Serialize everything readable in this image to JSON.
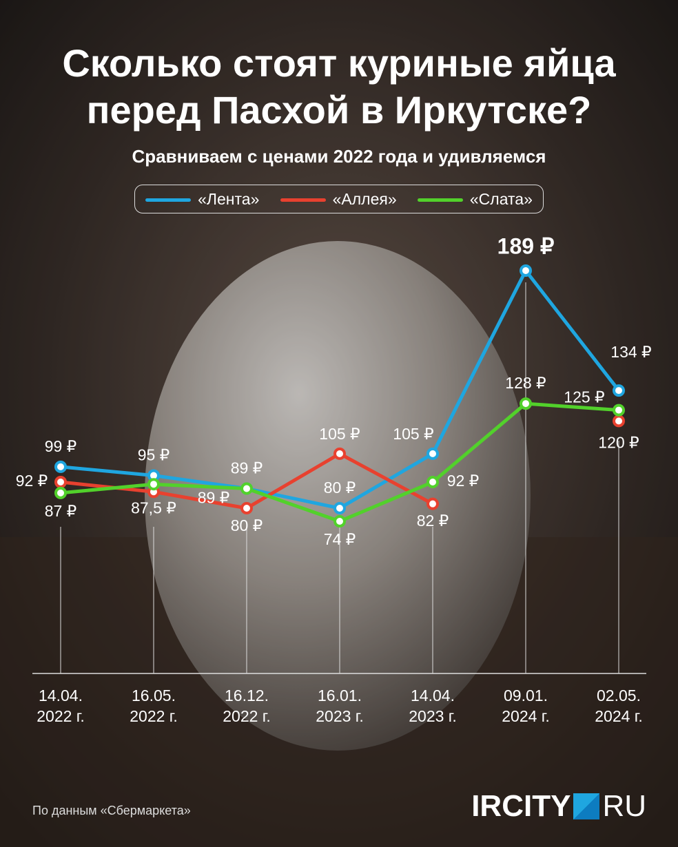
{
  "chart_data": {
    "type": "line",
    "title": "Сколько стоят куриные яйца перед Пасхой в Иркутске?",
    "subtitle": "Сравниваем с ценами 2022 года и удивляемся",
    "categories": [
      [
        "14.04.",
        "2022 г."
      ],
      [
        "16.05.",
        "2022 г."
      ],
      [
        "16.12.",
        "2022 г."
      ],
      [
        "16.01.",
        "2023 г."
      ],
      [
        "14.04.",
        "2023 г."
      ],
      [
        "09.01.",
        "2024 г."
      ],
      [
        "02.05.",
        "2024 г."
      ]
    ],
    "series": [
      {
        "name": "«Лента»",
        "color": "#1fa6e0",
        "values": [
          99,
          95,
          89,
          80,
          105,
          189,
          134
        ],
        "value_labels": [
          "99 ₽",
          "95 ₽",
          "89 ₽",
          "80 ₽",
          "105 ₽",
          "189 ₽",
          "134 ₽"
        ]
      },
      {
        "name": "«Аллея»",
        "color": "#e8412f",
        "values": [
          92,
          87.5,
          80,
          105,
          82,
          null,
          120
        ],
        "value_labels": [
          "92 ₽",
          "87,5 ₽",
          "80 ₽",
          "105 ₽",
          "82 ₽",
          null,
          "120 ₽"
        ]
      },
      {
        "name": "«Слата»",
        "color": "#52d12b",
        "values": [
          87,
          91,
          89,
          74,
          92,
          128,
          125
        ],
        "value_labels": [
          "87 ₽",
          null,
          "89 ₽",
          "74 ₽",
          "92 ₽",
          "128 ₽",
          "125 ₽"
        ]
      }
    ],
    "source": "По данным «Сбермаркета»",
    "logo": [
      "IRCITY",
      "RU"
    ]
  }
}
